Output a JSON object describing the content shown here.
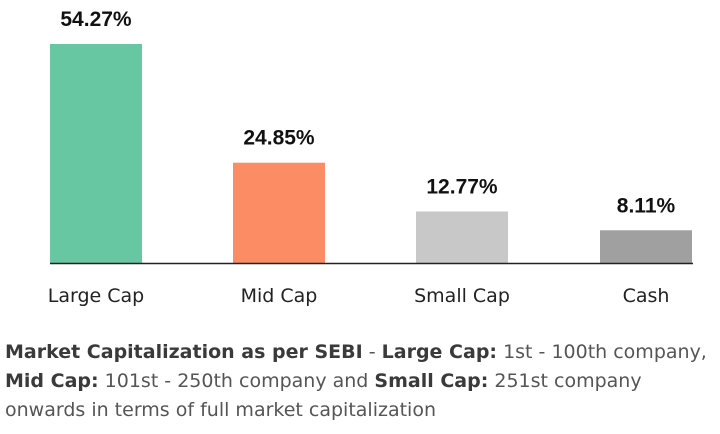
{
  "chart_data": {
    "type": "bar",
    "title": "",
    "xlabel": "",
    "ylabel": "",
    "ylim": [
      0,
      56
    ],
    "grid": false,
    "legend": "none",
    "categories": [
      "Large Cap",
      "Mid Cap",
      "Small Cap",
      "Cash"
    ],
    "values": [
      54.27,
      24.85,
      12.77,
      8.11
    ],
    "value_labels": [
      "54.27%",
      "24.85%",
      "12.77%",
      "8.11%"
    ],
    "colors": [
      "#66c7a2",
      "#fb8c64",
      "#c8c8c8",
      "#a0a0a0"
    ]
  },
  "footnote": {
    "b1": "Market Capitalization as per SEBI",
    "t1": " - ",
    "b2": "Large Cap:",
    "t2": " 1st - 100th company, ",
    "b3": "Mid Cap:",
    "t3": " 101st - 250th company and ",
    "b4": "Small Cap:",
    "t4": " 251st company onwards in terms of full market capitalization"
  }
}
